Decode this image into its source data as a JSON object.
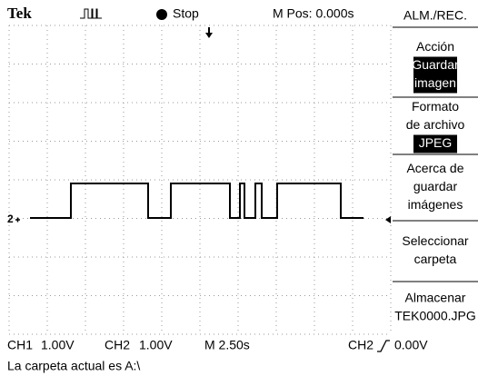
{
  "header": {
    "brand": "Tek",
    "status": "Stop",
    "position": "M Pos: 0.000s"
  },
  "menu": {
    "title": "ALM./REC.",
    "items": [
      {
        "label": [
          "Acción"
        ],
        "selected": [
          "Guardar",
          "imagen"
        ]
      },
      {
        "label": [
          "Formato",
          "de archivo"
        ],
        "selected": [
          "JPEG"
        ]
      },
      {
        "label": [
          "Acerca de",
          "guardar",
          "imágenes"
        ],
        "selected": []
      },
      {
        "label": [
          "Seleccionar",
          "carpeta"
        ],
        "selected": []
      },
      {
        "label": [
          "Almacenar",
          "TEK0000.JPG"
        ],
        "selected": []
      }
    ]
  },
  "screen": {
    "channel_marker": "2"
  },
  "status_bar": {
    "ch1": "CH1",
    "ch1_scale": "1.00V",
    "ch2": "CH2",
    "ch2_scale": "1.00V",
    "timebase": "M 2.50s",
    "trigger_source": "CH2",
    "trigger_level": "0.00V",
    "message": "La carpeta actual es A:\\"
  }
}
